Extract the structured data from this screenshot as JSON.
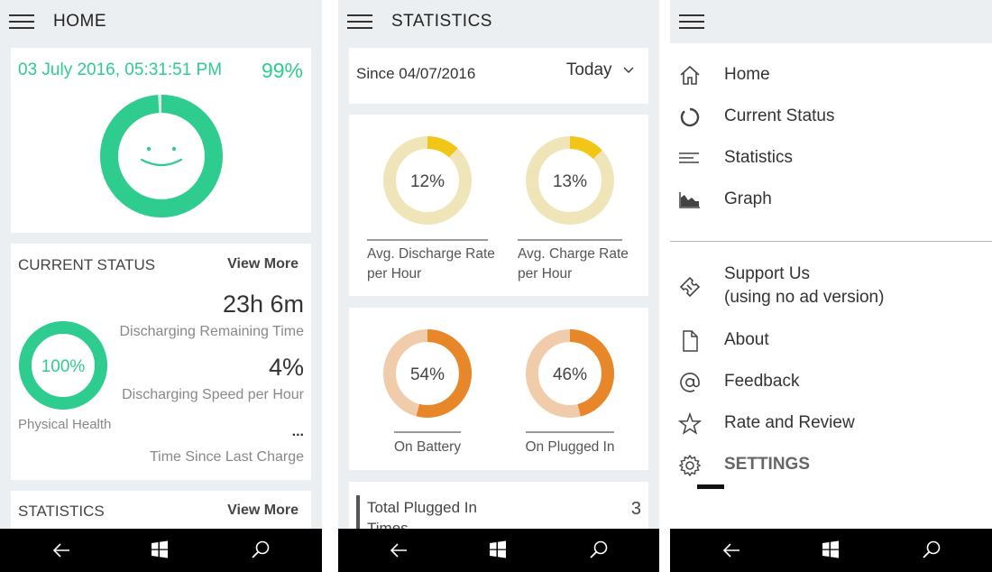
{
  "colors": {
    "green": "#2ecc8e",
    "yellow": "#f2c616",
    "yellow_track": "#efe5b9",
    "orange": "#e8862a",
    "orange_track": "#f0ccaa"
  },
  "home": {
    "title": "HOME",
    "datetime": "03 July 2016, 05:31:51 PM",
    "battery_percent": "99%",
    "battery_level": 0.99,
    "current_status": {
      "heading": "CURRENT STATUS",
      "view_more": "View More",
      "health_value": "100%",
      "health_level": 1.0,
      "health_label": "Physical Health",
      "remaining_value": "23h 6m",
      "remaining_label": "Discharging Remaining Time",
      "speed_value": "4%",
      "speed_label": "Discharging Speed per Hour",
      "since_value": "...",
      "since_label": "Time Since Last Charge"
    },
    "statistics": {
      "heading": "STATISTICS",
      "view_more": "View More"
    }
  },
  "statistics": {
    "title": "STATISTICS",
    "since": "Since 04/07/2016",
    "range_selected": "Today",
    "discharge": {
      "value": "12%",
      "level": 0.12,
      "label1": "Avg. Discharge Rate",
      "label2": "per Hour"
    },
    "charge": {
      "value": "13%",
      "level": 0.13,
      "label1": "Avg. Charge Rate",
      "label2": "per Hour"
    },
    "on_battery": {
      "value": "54%",
      "level": 0.54,
      "label": "On Battery"
    },
    "on_plugged": {
      "value": "46%",
      "level": 0.46,
      "label": "On Plugged In"
    },
    "total_plugged": {
      "label1": "Total Plugged In",
      "label2": "Times",
      "value": "3"
    }
  },
  "menu": {
    "items": [
      {
        "label": "Home",
        "icon": "home-icon"
      },
      {
        "label": "Current Status",
        "icon": "status-ring-icon"
      },
      {
        "label": "Statistics",
        "icon": "lines-icon"
      },
      {
        "label": "Graph",
        "icon": "area-chart-icon"
      }
    ],
    "support_line1": "Support Us",
    "support_line2": "(using no ad version)",
    "about": "About",
    "feedback": "Feedback",
    "rate": "Rate and Review",
    "settings": "SETTINGS"
  }
}
